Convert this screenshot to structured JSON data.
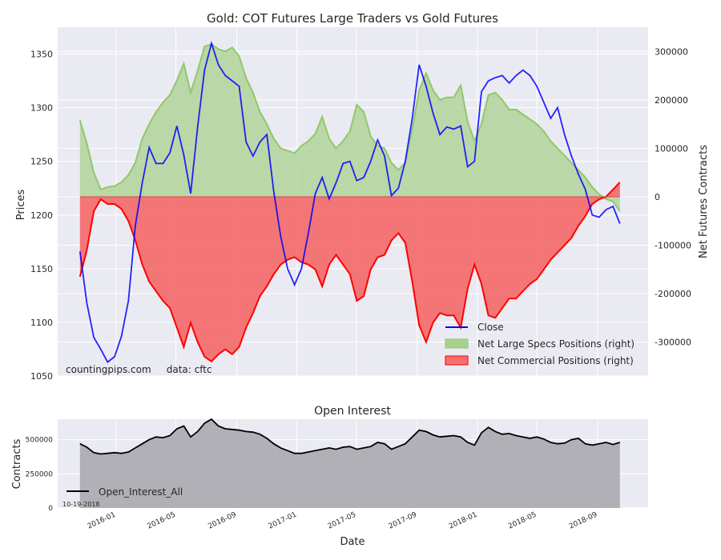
{
  "colors": {
    "panel_bg": "#EAEAF2",
    "grid": "#FFFFFF",
    "close": "#0000FF",
    "specs_fill": "#A8D08D",
    "specs_line": "#92C76A",
    "comm_fill": "#F46F6F",
    "comm_line": "#FF0000",
    "oi_fill": "#B0B0B6",
    "oi_line": "#000000"
  },
  "chart_data": [
    {
      "type": "line",
      "title": "Gold: COT Futures Large Traders vs Gold Futures",
      "xlabel": "",
      "ylabel": "Prices",
      "ylabel_right": "Net Futures Contracts",
      "ylim": [
        1050,
        1375
      ],
      "ylim_right": [
        -370000,
        350000
      ],
      "yticks": [
        1050,
        1100,
        1150,
        1200,
        1250,
        1300,
        1350
      ],
      "yticks_right": [
        -300000,
        -200000,
        -100000,
        0,
        100000,
        200000,
        300000
      ],
      "legend_position": "lower-right",
      "source_note": "countingpips.com     data: cftc",
      "grid": true,
      "series": [
        {
          "name": "Close",
          "axis": "left",
          "x": [
            "2015-10-20",
            "2015-11-03",
            "2015-11-17",
            "2015-12-01",
            "2015-12-15",
            "2015-12-29",
            "2016-01-12",
            "2016-01-26",
            "2016-02-09",
            "2016-02-23",
            "2016-03-08",
            "2016-03-22",
            "2016-04-05",
            "2016-04-19",
            "2016-05-03",
            "2016-05-17",
            "2016-05-31",
            "2016-06-14",
            "2016-06-28",
            "2016-07-12",
            "2016-07-26",
            "2016-08-09",
            "2016-08-23",
            "2016-09-06",
            "2016-09-20",
            "2016-10-04",
            "2016-10-18",
            "2016-11-01",
            "2016-11-15",
            "2016-11-29",
            "2016-12-13",
            "2016-12-27",
            "2017-01-10",
            "2017-01-24",
            "2017-02-07",
            "2017-02-21",
            "2017-03-07",
            "2017-03-21",
            "2017-04-04",
            "2017-04-18",
            "2017-05-02",
            "2017-05-16",
            "2017-05-30",
            "2017-06-13",
            "2017-06-27",
            "2017-07-11",
            "2017-07-25",
            "2017-08-08",
            "2017-08-22",
            "2017-09-05",
            "2017-09-19",
            "2017-10-03",
            "2017-10-17",
            "2017-10-31",
            "2017-11-14",
            "2017-11-28",
            "2017-12-12",
            "2017-12-26",
            "2018-01-09",
            "2018-01-23",
            "2018-02-06",
            "2018-02-20",
            "2018-03-06",
            "2018-03-20",
            "2018-04-03",
            "2018-04-17",
            "2018-05-01",
            "2018-05-15",
            "2018-05-29",
            "2018-06-12",
            "2018-06-26",
            "2018-07-10",
            "2018-07-24",
            "2018-08-07",
            "2018-08-21",
            "2018-09-04",
            "2018-09-18",
            "2018-10-02",
            "2018-10-16"
          ],
          "values": [
            1166,
            1118,
            1086,
            1075,
            1063,
            1068,
            1087,
            1120,
            1190,
            1230,
            1263,
            1248,
            1248,
            1258,
            1283,
            1256,
            1220,
            1282,
            1335,
            1360,
            1340,
            1330,
            1325,
            1320,
            1268,
            1255,
            1268,
            1275,
            1222,
            1180,
            1150,
            1135,
            1150,
            1183,
            1220,
            1235,
            1215,
            1230,
            1248,
            1250,
            1232,
            1235,
            1250,
            1270,
            1255,
            1218,
            1225,
            1250,
            1290,
            1340,
            1320,
            1295,
            1275,
            1282,
            1280,
            1283,
            1245,
            1250,
            1315,
            1325,
            1328,
            1330,
            1323,
            1330,
            1335,
            1330,
            1320,
            1305,
            1290,
            1300,
            1275,
            1255,
            1238,
            1224,
            1200,
            1198,
            1205,
            1208,
            1192
          ]
        },
        {
          "name": "Net Large Specs Positions (right)",
          "axis": "right",
          "x": [
            "2015-10-20",
            "2015-11-03",
            "2015-11-17",
            "2015-12-01",
            "2015-12-15",
            "2015-12-29",
            "2016-01-12",
            "2016-01-26",
            "2016-02-09",
            "2016-02-23",
            "2016-03-08",
            "2016-03-22",
            "2016-04-05",
            "2016-04-19",
            "2016-05-03",
            "2016-05-17",
            "2016-05-31",
            "2016-06-14",
            "2016-06-28",
            "2016-07-12",
            "2016-07-26",
            "2016-08-09",
            "2016-08-23",
            "2016-09-06",
            "2016-09-20",
            "2016-10-04",
            "2016-10-18",
            "2016-11-01",
            "2016-11-15",
            "2016-11-29",
            "2016-12-13",
            "2016-12-27",
            "2017-01-10",
            "2017-01-24",
            "2017-02-07",
            "2017-02-21",
            "2017-03-07",
            "2017-03-21",
            "2017-04-04",
            "2017-04-18",
            "2017-05-02",
            "2017-05-16",
            "2017-05-30",
            "2017-06-13",
            "2017-06-27",
            "2017-07-11",
            "2017-07-25",
            "2017-08-08",
            "2017-08-22",
            "2017-09-05",
            "2017-09-19",
            "2017-10-03",
            "2017-10-17",
            "2017-10-31",
            "2017-11-14",
            "2017-11-28",
            "2017-12-12",
            "2017-12-26",
            "2018-01-09",
            "2018-01-23",
            "2018-02-06",
            "2018-02-20",
            "2018-03-06",
            "2018-03-20",
            "2018-04-03",
            "2018-04-17",
            "2018-05-01",
            "2018-05-15",
            "2018-05-29",
            "2018-06-12",
            "2018-06-26",
            "2018-07-10",
            "2018-07-24",
            "2018-08-07",
            "2018-08-21",
            "2018-09-04",
            "2018-09-18",
            "2018-10-02",
            "2018-10-16"
          ],
          "values": [
            158000,
            110000,
            50000,
            15000,
            20000,
            22000,
            30000,
            45000,
            70000,
            120000,
            150000,
            175000,
            195000,
            210000,
            240000,
            275000,
            215000,
            260000,
            310000,
            315000,
            305000,
            300000,
            308000,
            290000,
            245000,
            215000,
            175000,
            150000,
            120000,
            100000,
            95000,
            90000,
            105000,
            115000,
            130000,
            165000,
            120000,
            100000,
            115000,
            135000,
            190000,
            175000,
            125000,
            105000,
            100000,
            70000,
            55000,
            70000,
            140000,
            220000,
            255000,
            220000,
            200000,
            205000,
            205000,
            230000,
            155000,
            115000,
            150000,
            210000,
            215000,
            200000,
            180000,
            180000,
            170000,
            160000,
            150000,
            135000,
            115000,
            100000,
            85000,
            70000,
            55000,
            40000,
            20000,
            5000,
            -5000,
            -10000,
            -30000
          ]
        },
        {
          "name": "Net Commercial Positions (right)",
          "axis": "right",
          "x": [
            "2015-10-20",
            "2015-11-03",
            "2015-11-17",
            "2015-12-01",
            "2015-12-15",
            "2015-12-29",
            "2016-01-12",
            "2016-01-26",
            "2016-02-09",
            "2016-02-23",
            "2016-03-08",
            "2016-03-22",
            "2016-04-05",
            "2016-04-19",
            "2016-05-03",
            "2016-05-17",
            "2016-05-31",
            "2016-06-14",
            "2016-06-28",
            "2016-07-12",
            "2016-07-26",
            "2016-08-09",
            "2016-08-23",
            "2016-09-06",
            "2016-09-20",
            "2016-10-04",
            "2016-10-18",
            "2016-11-01",
            "2016-11-15",
            "2016-11-29",
            "2016-12-13",
            "2016-12-27",
            "2017-01-10",
            "2017-01-24",
            "2017-02-07",
            "2017-02-21",
            "2017-03-07",
            "2017-03-21",
            "2017-04-04",
            "2017-04-18",
            "2017-05-02",
            "2017-05-16",
            "2017-05-30",
            "2017-06-13",
            "2017-06-27",
            "2017-07-11",
            "2017-07-25",
            "2017-08-08",
            "2017-08-22",
            "2017-09-05",
            "2017-09-19",
            "2017-10-03",
            "2017-10-17",
            "2017-10-31",
            "2017-11-14",
            "2017-11-28",
            "2017-12-12",
            "2017-12-26",
            "2018-01-09",
            "2018-01-23",
            "2018-02-06",
            "2018-02-20",
            "2018-03-06",
            "2018-03-20",
            "2018-04-03",
            "2018-04-17",
            "2018-05-01",
            "2018-05-15",
            "2018-05-29",
            "2018-06-12",
            "2018-06-26",
            "2018-07-10",
            "2018-07-24",
            "2018-08-07",
            "2018-08-21",
            "2018-09-04",
            "2018-09-18",
            "2018-10-02",
            "2018-10-16"
          ],
          "values": [
            -165000,
            -110000,
            -30000,
            -5000,
            -15000,
            -15000,
            -25000,
            -50000,
            -90000,
            -140000,
            -175000,
            -195000,
            -215000,
            -230000,
            -270000,
            -310000,
            -260000,
            -300000,
            -330000,
            -340000,
            -325000,
            -315000,
            -325000,
            -310000,
            -270000,
            -240000,
            -205000,
            -185000,
            -160000,
            -140000,
            -130000,
            -125000,
            -135000,
            -140000,
            -150000,
            -185000,
            -140000,
            -120000,
            -140000,
            -160000,
            -215000,
            -205000,
            -150000,
            -125000,
            -120000,
            -90000,
            -75000,
            -95000,
            -175000,
            -265000,
            -300000,
            -260000,
            -240000,
            -245000,
            -245000,
            -270000,
            -190000,
            -140000,
            -180000,
            -245000,
            -250000,
            -230000,
            -210000,
            -210000,
            -195000,
            -180000,
            -170000,
            -150000,
            -130000,
            -115000,
            -100000,
            -85000,
            -60000,
            -40000,
            -15000,
            -5000,
            0,
            15000,
            30000
          ]
        }
      ]
    },
    {
      "type": "area",
      "title": "Open Interest",
      "xlabel": "Date",
      "ylabel": "Contracts",
      "ylim": [
        0,
        650000
      ],
      "yticks": [
        0,
        250000,
        500000
      ],
      "x_tick_labels": [
        "2016-01",
        "2016-05",
        "2016-09",
        "2017-01",
        "2017-05",
        "2017-09",
        "2018-01",
        "2018-05",
        "2018-09"
      ],
      "date_note": "10-19-2018",
      "legend_position": "lower-left",
      "grid": true,
      "series": [
        {
          "name": "Open_Interest_All",
          "x": [
            "2015-10-20",
            "2015-11-03",
            "2015-11-17",
            "2015-12-01",
            "2015-12-15",
            "2015-12-29",
            "2016-01-12",
            "2016-01-26",
            "2016-02-09",
            "2016-02-23",
            "2016-03-08",
            "2016-03-22",
            "2016-04-05",
            "2016-04-19",
            "2016-05-03",
            "2016-05-17",
            "2016-05-31",
            "2016-06-14",
            "2016-06-28",
            "2016-07-12",
            "2016-07-26",
            "2016-08-09",
            "2016-08-23",
            "2016-09-06",
            "2016-09-20",
            "2016-10-04",
            "2016-10-18",
            "2016-11-01",
            "2016-11-15",
            "2016-11-29",
            "2016-12-13",
            "2016-12-27",
            "2017-01-10",
            "2017-01-24",
            "2017-02-07",
            "2017-02-21",
            "2017-03-07",
            "2017-03-21",
            "2017-04-04",
            "2017-04-18",
            "2017-05-02",
            "2017-05-16",
            "2017-05-30",
            "2017-06-13",
            "2017-06-27",
            "2017-07-11",
            "2017-07-25",
            "2017-08-08",
            "2017-08-22",
            "2017-09-05",
            "2017-09-19",
            "2017-10-03",
            "2017-10-17",
            "2017-10-31",
            "2017-11-14",
            "2017-11-28",
            "2017-12-12",
            "2017-12-26",
            "2018-01-09",
            "2018-01-23",
            "2018-02-06",
            "2018-02-20",
            "2018-03-06",
            "2018-03-20",
            "2018-04-03",
            "2018-04-17",
            "2018-05-01",
            "2018-05-15",
            "2018-05-29",
            "2018-06-12",
            "2018-06-26",
            "2018-07-10",
            "2018-07-24",
            "2018-08-07",
            "2018-08-21",
            "2018-09-04",
            "2018-09-18",
            "2018-10-02",
            "2018-10-16"
          ],
          "values": [
            470000,
            445000,
            405000,
            395000,
            400000,
            405000,
            400000,
            410000,
            440000,
            470000,
            500000,
            520000,
            515000,
            530000,
            580000,
            600000,
            520000,
            560000,
            620000,
            650000,
            600000,
            580000,
            575000,
            570000,
            560000,
            555000,
            540000,
            510000,
            470000,
            440000,
            420000,
            400000,
            400000,
            410000,
            420000,
            430000,
            440000,
            430000,
            445000,
            450000,
            430000,
            440000,
            450000,
            480000,
            470000,
            430000,
            450000,
            470000,
            520000,
            570000,
            560000,
            535000,
            520000,
            525000,
            530000,
            520000,
            480000,
            460000,
            550000,
            590000,
            560000,
            540000,
            545000,
            530000,
            520000,
            510000,
            520000,
            505000,
            480000,
            470000,
            475000,
            500000,
            510000,
            470000,
            460000,
            470000,
            480000,
            465000,
            480000
          ]
        }
      ]
    }
  ]
}
